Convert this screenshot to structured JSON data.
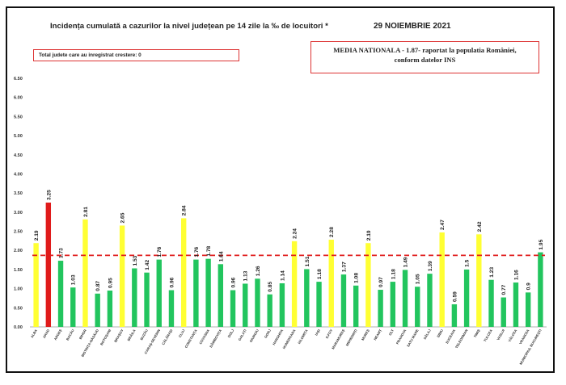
{
  "header": {
    "title": "Incidența cumulată a cazurilor la nivel județean pe 14 zile la ‰ de locuitori *",
    "date": "29 NOIEMBRIE 2021"
  },
  "notes": {
    "left_box": "Total judete care au inregistrat crestere: 0",
    "right_box_line1": "MEDIA NATIONALA - 1.87-  raportat la populatia României,",
    "right_box_line2": "conform datelor INS"
  },
  "colors": {
    "green": "#22c55e",
    "yellow": "#ffff33",
    "red": "#e01b1b",
    "reference_line": "#e01b1b"
  },
  "chart_data": {
    "type": "bar",
    "title": "Incidența cumulată a cazurilor la nivel județean pe 14 zile la ‰ de locuitori *",
    "xlabel": "",
    "ylabel": "",
    "ylim": [
      0,
      6.5
    ],
    "yticks": [
      "0.00",
      "0.50",
      "1.00",
      "1.50",
      "2.00",
      "2.50",
      "3.00",
      "3.50",
      "4.00",
      "4.50",
      "5.00",
      "5.50",
      "6.00",
      "6.50"
    ],
    "grid": false,
    "reference_line": {
      "value": 1.87,
      "style": "dashed"
    },
    "categories": [
      "ALBA",
      "ARAD",
      "ARGEȘ",
      "BACĂU",
      "BIHOR",
      "BISTRIȚA-NĂSĂUD",
      "BOTOȘANI",
      "BRAȘOV",
      "BRĂILA",
      "BUZĂU",
      "CARAȘ-SEVERIN",
      "CĂLĂRAȘI",
      "CLUJ",
      "CONSTANȚA",
      "COVASNA",
      "DÂMBOVIȚA",
      "DOLJ",
      "GALAȚI",
      "GIURGIU",
      "GORJ",
      "HARGHITA",
      "HUNEDOARA",
      "IALOMIȚA",
      "IAȘI",
      "ILFOV",
      "MARAMUREȘ",
      "MEHEDINȚI",
      "MUREȘ",
      "NEAMȚ",
      "OLT",
      "PRAHOVA",
      "SATU MARE",
      "SĂLAJ",
      "SIBIU",
      "SUCEAVA",
      "TELEORMAN",
      "TIMIȘ",
      "TULCEA",
      "VASLUI",
      "VÂLCEA",
      "VRANCEA",
      "MUNICIPIUL BUCUREȘTI"
    ],
    "values": [
      2.19,
      3.25,
      1.73,
      1.03,
      2.81,
      0.87,
      0.95,
      2.65,
      1.53,
      1.42,
      1.76,
      0.96,
      2.84,
      1.76,
      1.78,
      1.64,
      0.96,
      1.13,
      1.26,
      0.85,
      1.14,
      2.24,
      1.51,
      1.18,
      2.28,
      1.37,
      1.08,
      2.19,
      0.97,
      1.18,
      1.49,
      1.05,
      1.39,
      2.47,
      0.59,
      1.5,
      2.42,
      1.23,
      0.77,
      1.16,
      0.9,
      1.95
    ],
    "value_labels": [
      "2.19",
      "3.25",
      "1.73",
      "1.03",
      "2.81",
      "0.87",
      "0.95",
      "2.65",
      "1.53",
      "1.42",
      "1.76",
      "0.96",
      "2.84",
      "1.76",
      "1.78",
      "1.64",
      "0.96",
      "1.13",
      "1.26",
      "0.85",
      "1.14",
      "2.24",
      "1.51",
      "1.18",
      "2.28",
      "1.37",
      "1.08",
      "2.19",
      "0.97",
      "1.18",
      "1.49",
      "1.05",
      "1.39",
      "2.47",
      "0.59",
      "1.5",
      "2.42",
      "1.23",
      "0.77",
      "1.16",
      "0.9",
      "1.95"
    ],
    "bar_colors": [
      "yellow",
      "red",
      "green",
      "green",
      "yellow",
      "green",
      "green",
      "yellow",
      "green",
      "green",
      "green",
      "green",
      "yellow",
      "green",
      "green",
      "green",
      "green",
      "green",
      "green",
      "green",
      "green",
      "yellow",
      "green",
      "green",
      "yellow",
      "green",
      "green",
      "yellow",
      "green",
      "green",
      "green",
      "green",
      "green",
      "yellow",
      "green",
      "green",
      "yellow",
      "green",
      "green",
      "green",
      "green",
      "green"
    ]
  }
}
